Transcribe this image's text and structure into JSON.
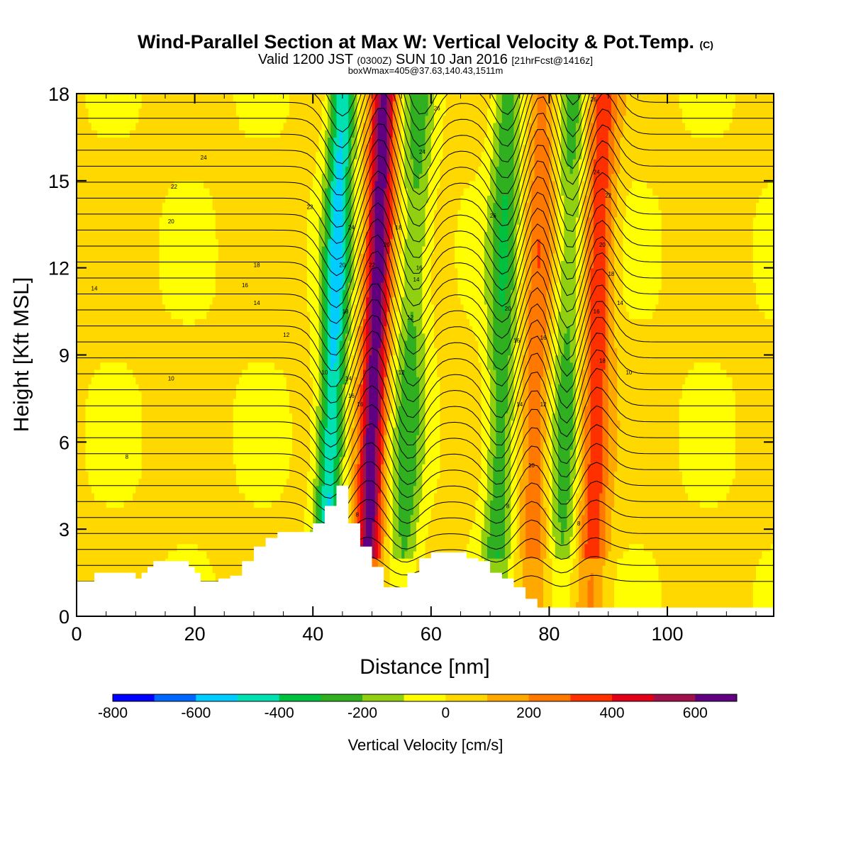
{
  "title": {
    "main": "Wind-Parallel Section at Max W: Vertical Velocity & Pot.Temp.",
    "copyright": "(C)",
    "line2_a": "Valid 1200 JST",
    "line2_b": "(0300Z)",
    "line2_c": "SUN 10 Jan 2016",
    "line2_d": "[21hrFcst@1416z]",
    "line3": "boxWmax=405@37.63,140.43,1511m"
  },
  "chart_data": {
    "type": "heatmap",
    "xlabel": "Distance [nm]",
    "ylabel": "Height [Kft MSL]",
    "xlim": [
      0,
      118
    ],
    "ylim": [
      0,
      18
    ],
    "x_ticks": [
      0,
      20,
      40,
      60,
      80,
      100
    ],
    "y_ticks": [
      0,
      3,
      6,
      9,
      12,
      15,
      18
    ],
    "colorbar": {
      "label": "Vertical Velocity [cm/s]",
      "range": [
        -800,
        700
      ],
      "step": 100,
      "tick_values": [
        -800,
        -600,
        -400,
        -200,
        0,
        200,
        400,
        600
      ],
      "colors": [
        "#0000ff",
        "#0066ff",
        "#00ccff",
        "#00e0b0",
        "#00c040",
        "#30b020",
        "#90d010",
        "#ffff00",
        "#ffd800",
        "#ffa800",
        "#ff7800",
        "#ff3000",
        "#e00018",
        "#a0104a",
        "#600080"
      ]
    },
    "vertical_velocity_features_cm_s": [
      {
        "x_nm": 45,
        "w_cm_s": -550,
        "kind": "downdraft"
      },
      {
        "x_nm": 52,
        "w_cm_s": 650,
        "kind": "updraft"
      },
      {
        "x_nm": 58,
        "w_cm_s": -250,
        "kind": "downdraft"
      },
      {
        "x_nm": 73,
        "w_cm_s": -300,
        "kind": "downdraft"
      },
      {
        "x_nm": 79,
        "w_cm_s": 250,
        "kind": "updraft"
      },
      {
        "x_nm": 84,
        "w_cm_s": -250,
        "kind": "downdraft"
      },
      {
        "x_nm": 89,
        "w_cm_s": 350,
        "kind": "updraft"
      }
    ],
    "terrain": {
      "x": [
        0,
        3,
        6,
        9,
        10,
        11,
        12,
        13,
        15,
        17,
        19,
        20,
        21,
        24,
        26,
        28,
        30,
        32,
        34,
        36,
        38,
        40,
        42,
        44,
        46,
        48,
        50,
        52,
        54,
        56,
        58,
        60,
        62,
        64,
        66,
        68,
        70,
        72,
        74,
        76,
        78,
        80,
        118
      ],
      "height_kft": [
        1.2,
        1.5,
        1.5,
        1.5,
        1.3,
        1.5,
        1.7,
        1.9,
        1.9,
        1.9,
        1.7,
        1.5,
        1.2,
        1.3,
        1.4,
        1.9,
        2.4,
        2.7,
        2.9,
        2.9,
        2.9,
        3.2,
        3.8,
        4.5,
        3.2,
        2.4,
        1.7,
        1.0,
        1.0,
        1.5,
        2.0,
        2.2,
        2.2,
        2.2,
        2.0,
        1.9,
        1.5,
        1.3,
        1.0,
        0.6,
        0.3,
        0.3,
        0.3
      ]
    },
    "contour_labels": [
      {
        "x": 3,
        "y": 11.3,
        "text": "14"
      },
      {
        "x": 8.5,
        "y": 5.5,
        "text": "8"
      },
      {
        "x": 16,
        "y": 8.2,
        "text": "10"
      },
      {
        "x": 16.5,
        "y": 14.8,
        "text": "22"
      },
      {
        "x": 16,
        "y": 13.6,
        "text": "20"
      },
      {
        "x": 21.5,
        "y": 15.8,
        "text": "24"
      },
      {
        "x": 28.5,
        "y": 11.4,
        "text": "16"
      },
      {
        "x": 30.5,
        "y": 12.1,
        "text": "18"
      },
      {
        "x": 30.5,
        "y": 10.8,
        "text": "14"
      },
      {
        "x": 35.5,
        "y": 9.7,
        "text": "12"
      },
      {
        "x": 39.5,
        "y": 14.1,
        "text": "22"
      },
      {
        "x": 42,
        "y": 8.4,
        "text": "10"
      },
      {
        "x": 46.5,
        "y": 13.4,
        "text": "24"
      },
      {
        "x": 45,
        "y": 12.1,
        "text": "20"
      },
      {
        "x": 45.5,
        "y": 10.5,
        "text": "18"
      },
      {
        "x": 46,
        "y": 8.2,
        "text": "14"
      },
      {
        "x": 46.5,
        "y": 7.6,
        "text": "16"
      },
      {
        "x": 48,
        "y": 7.3,
        "text": "16"
      },
      {
        "x": 47.5,
        "y": 3.5,
        "text": "8"
      },
      {
        "x": 50,
        "y": 12.1,
        "text": "22"
      },
      {
        "x": 52.5,
        "y": 12.8,
        "text": "20"
      },
      {
        "x": 54.5,
        "y": 13.4,
        "text": "18"
      },
      {
        "x": 55,
        "y": 8.4,
        "text": "12"
      },
      {
        "x": 56.5,
        "y": 10.3,
        "text": "12"
      },
      {
        "x": 57.5,
        "y": 11.6,
        "text": "14"
      },
      {
        "x": 58,
        "y": 12.0,
        "text": "16"
      },
      {
        "x": 58.5,
        "y": 16.0,
        "text": "24"
      },
      {
        "x": 61,
        "y": 17.5,
        "text": "26"
      },
      {
        "x": 70.5,
        "y": 13.8,
        "text": "26"
      },
      {
        "x": 73,
        "y": 10.6,
        "text": "20"
      },
      {
        "x": 74.5,
        "y": 9.5,
        "text": "16"
      },
      {
        "x": 75,
        "y": 7.3,
        "text": "14"
      },
      {
        "x": 79,
        "y": 9.6,
        "text": "16"
      },
      {
        "x": 79,
        "y": 7.3,
        "text": "12"
      },
      {
        "x": 77,
        "y": 5.2,
        "text": "10"
      },
      {
        "x": 73,
        "y": 3.8,
        "text": "8"
      },
      {
        "x": 85,
        "y": 3.2,
        "text": "8"
      },
      {
        "x": 87.5,
        "y": 17.8,
        "text": "26"
      },
      {
        "x": 88,
        "y": 15.3,
        "text": "24"
      },
      {
        "x": 90,
        "y": 14.5,
        "text": "22"
      },
      {
        "x": 89,
        "y": 12.8,
        "text": "20"
      },
      {
        "x": 90.5,
        "y": 11.8,
        "text": "18"
      },
      {
        "x": 88,
        "y": 10.5,
        "text": "16"
      },
      {
        "x": 92,
        "y": 10.8,
        "text": "14"
      },
      {
        "x": 89,
        "y": 8.8,
        "text": "18"
      },
      {
        "x": 93.5,
        "y": 8.4,
        "text": "10"
      }
    ]
  }
}
